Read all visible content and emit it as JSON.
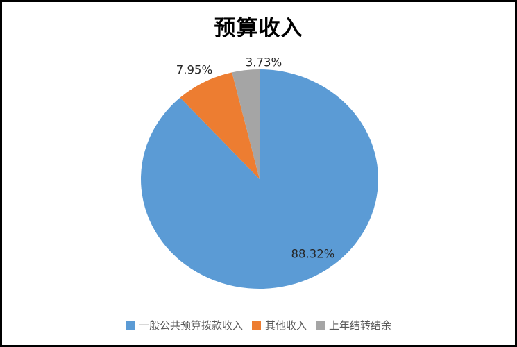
{
  "window": {
    "background_color": "#ffffff",
    "border_color": "#000000"
  },
  "chart_data": {
    "type": "pie",
    "title": "预算收入",
    "slices": [
      {
        "name": "一般公共预算拨款收入",
        "value": 88.32,
        "label": "88.32%",
        "color": "#5B9BD5"
      },
      {
        "name": "其他收入",
        "value": 7.95,
        "label": "7.95%",
        "color": "#ED7D31"
      },
      {
        "name": "上年结转结余",
        "value": 3.73,
        "label": "3.73%",
        "color": "#A5A5A5"
      }
    ],
    "start_angle_deg": 0,
    "direction": "clockwise",
    "legend_position": "bottom",
    "data_label_color": "#262626",
    "legend_text_color": "#595959"
  }
}
